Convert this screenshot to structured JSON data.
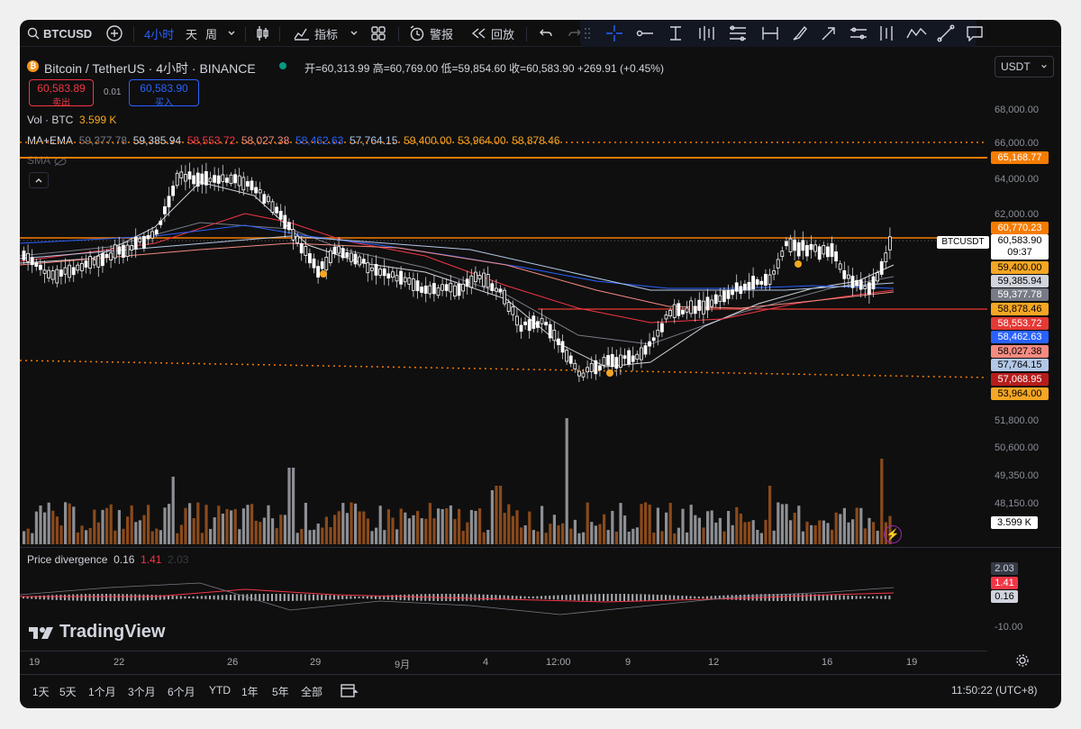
{
  "toolbar": {
    "symbol": "BTCUSD",
    "interval": "4小时",
    "day": "天",
    "week": "周",
    "indicators": "指标",
    "alert": "警报",
    "replay": "回放"
  },
  "header": {
    "title": "Bitcoin / TetherUS · 4小时 · BINANCE",
    "ohlc": "开=60,313.99 高=60,769.00 低=59,854.60 收=60,583.90 +269.91 (+0.45%)",
    "sell_price": "60,583.89",
    "sell_label": "卖出",
    "spread": "0.01",
    "buy_price": "60,583.90",
    "buy_label": "买入",
    "currency": "USDT"
  },
  "legend": {
    "vol_label": "Vol · BTC",
    "vol_value": "3.599 K",
    "ma_label": "MA+EMA",
    "ma_values": [
      "59,377.78",
      "59,385.94",
      "58,553.72",
      "58,027.38",
      "58,462.63",
      "57,764.15",
      "59,400.00",
      "53,964.00",
      "58,878.46"
    ],
    "sma_label": "SMA"
  },
  "price_axis": {
    "ticks": [
      "68,000.00",
      "66,000.00",
      "64,000.00",
      "62,000.00",
      "51,800.00",
      "50,600.00",
      "49,350.00",
      "48,150.00"
    ],
    "tags": [
      {
        "text": "65,168.77",
        "bg": "#f57c00",
        "fg": "#ffffff"
      },
      {
        "text": "60,770.23",
        "bg": "#f57c00",
        "fg": "#ffffff"
      },
      {
        "text": "59,400.00",
        "bg": "#f5a623",
        "fg": "#000000"
      },
      {
        "text": "59,385.94",
        "bg": "#d1d4dc",
        "fg": "#000000"
      },
      {
        "text": "59,377.78",
        "bg": "#787b86",
        "fg": "#ffffff"
      },
      {
        "text": "58,878.46",
        "bg": "#f5a623",
        "fg": "#000000"
      },
      {
        "text": "58,553.72",
        "bg": "#e53935",
        "fg": "#ffffff"
      },
      {
        "text": "58,462.63",
        "bg": "#2962ff",
        "fg": "#ffffff"
      },
      {
        "text": "58,027.38",
        "bg": "#f48a80",
        "fg": "#000000"
      },
      {
        "text": "57,764.15",
        "bg": "#b2c7e6",
        "fg": "#000000"
      },
      {
        "text": "57,068.95",
        "bg": "#b71c1c",
        "fg": "#ffffff"
      },
      {
        "text": "53,964.00",
        "bg": "#f5a623",
        "fg": "#000000"
      }
    ],
    "last_price": "60,583.90",
    "countdown": "09:37",
    "symbol_tag": "BTCUSDT",
    "volume_tag": "3.599 K"
  },
  "divergence": {
    "label": "Price divergence",
    "v1": "0.16",
    "v2": "1.41",
    "v3": "2.03",
    "axis_label": "-10.00"
  },
  "time_axis": [
    "19",
    "22",
    "26",
    "29",
    "9月",
    "4",
    "12:00",
    "9",
    "12",
    "16",
    "19"
  ],
  "bottom": {
    "ranges": [
      "1天",
      "5天",
      "1个月",
      "3个月",
      "6个月",
      "YTD",
      "1年",
      "5年",
      "全部"
    ],
    "clock": "11:50:22 (UTC+8)"
  },
  "brand": "TradingView"
}
